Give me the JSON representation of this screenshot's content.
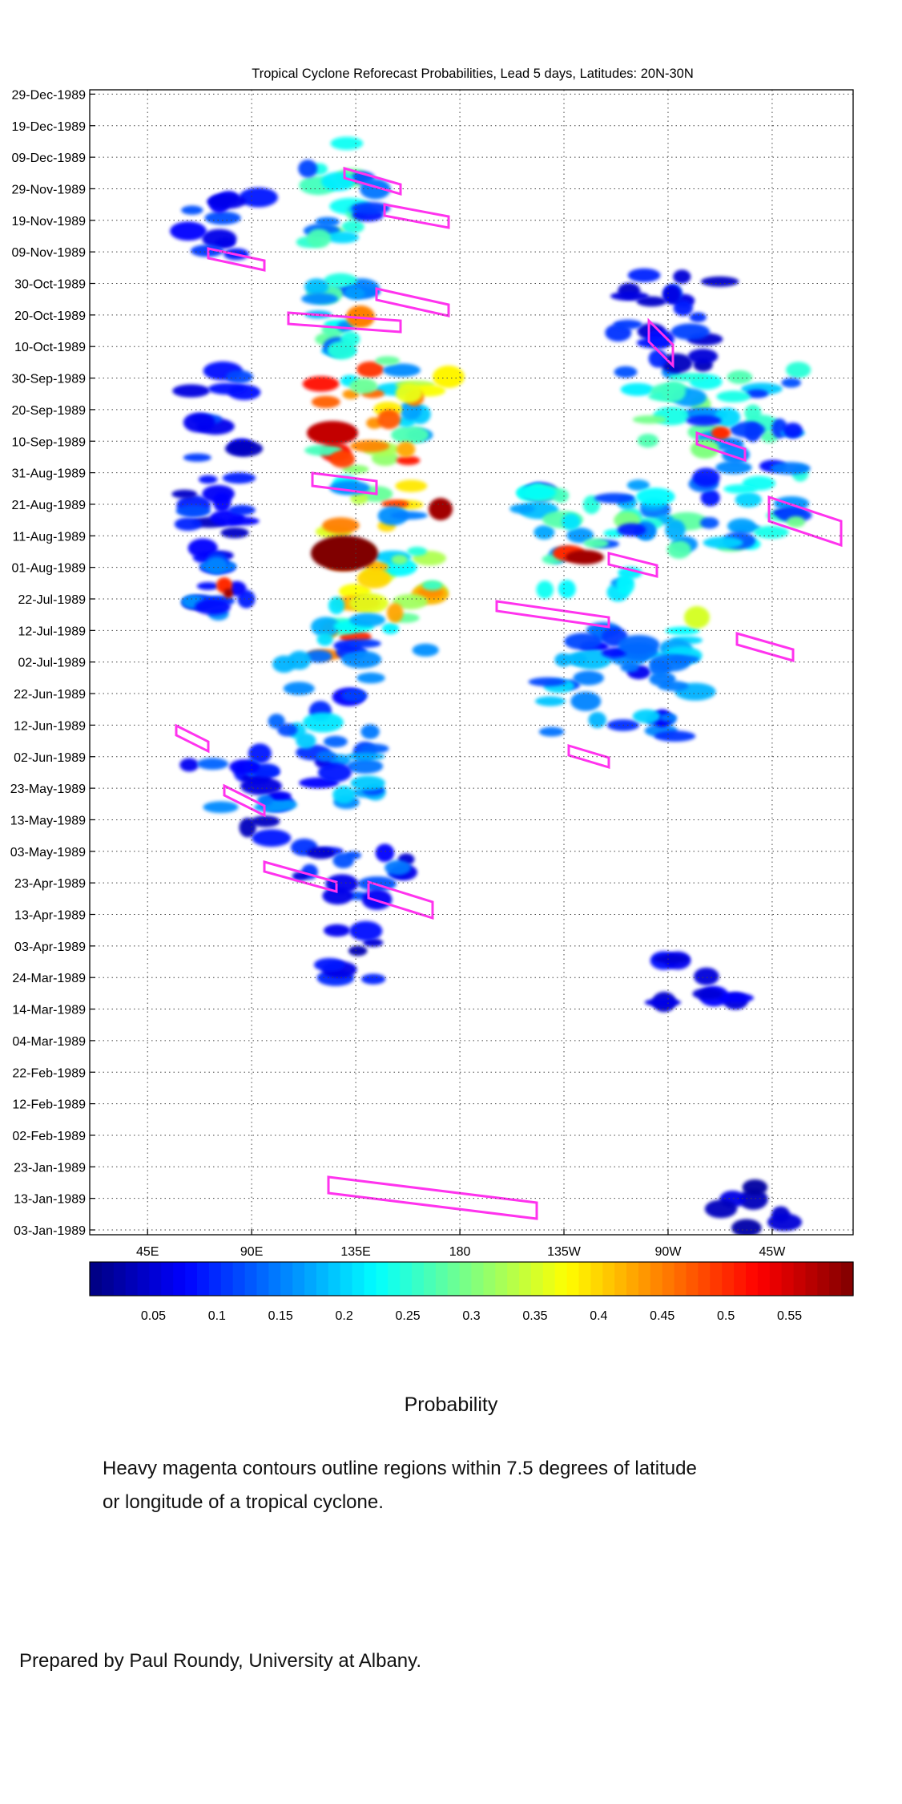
{
  "chart_data": {
    "type": "heatmap",
    "title": "Tropical Cyclone Reforecast Probabilities, Lead 5 days, Latitudes: 20N-30N",
    "xlabel": "",
    "ylabel": "",
    "x_ticks": [
      "45E",
      "90E",
      "135E",
      "180",
      "135W",
      "90W",
      "45W"
    ],
    "x_tick_values": [
      45,
      90,
      135,
      180,
      225,
      270,
      315
    ],
    "xlim": [
      20,
      350
    ],
    "y_ticks": [
      "03-Jan-1989",
      "13-Jan-1989",
      "23-Jan-1989",
      "02-Feb-1989",
      "12-Feb-1989",
      "22-Feb-1989",
      "04-Mar-1989",
      "14-Mar-1989",
      "24-Mar-1989",
      "03-Apr-1989",
      "13-Apr-1989",
      "23-Apr-1989",
      "03-May-1989",
      "13-May-1989",
      "23-May-1989",
      "02-Jun-1989",
      "12-Jun-1989",
      "22-Jun-1989",
      "02-Jul-1989",
      "12-Jul-1989",
      "22-Jul-1989",
      "01-Aug-1989",
      "11-Aug-1989",
      "21-Aug-1989",
      "31-Aug-1989",
      "10-Sep-1989",
      "20-Sep-1989",
      "30-Sep-1989",
      "10-Oct-1989",
      "20-Oct-1989",
      "30-Oct-1989",
      "09-Nov-1989",
      "19-Nov-1989",
      "29-Nov-1989",
      "09-Dec-1989",
      "19-Dec-1989",
      "29-Dec-1989"
    ],
    "ylim": [
      "03-Jan-1989",
      "29-Dec-1989"
    ],
    "colorbar": {
      "label": "Probability",
      "ticks": [
        "0.05",
        "0.1",
        "0.15",
        "0.2",
        "0.25",
        "0.3",
        "0.35",
        "0.4",
        "0.45",
        "0.5",
        "0.55"
      ],
      "tick_values": [
        0.05,
        0.1,
        0.15,
        0.2,
        0.25,
        0.3,
        0.35,
        0.4,
        0.45,
        0.5,
        0.55
      ],
      "range": [
        0,
        0.6
      ]
    },
    "grid": true,
    "colormap": "jet",
    "contour_color": "#ff33ee"
  },
  "notes": {
    "line1": "Heavy magenta contours outline regions within 7.5 degrees of latitude",
    "line2": "or longitude of a tropical cyclone."
  },
  "credit": "Prepared by Paul Roundy, University at Albany."
}
